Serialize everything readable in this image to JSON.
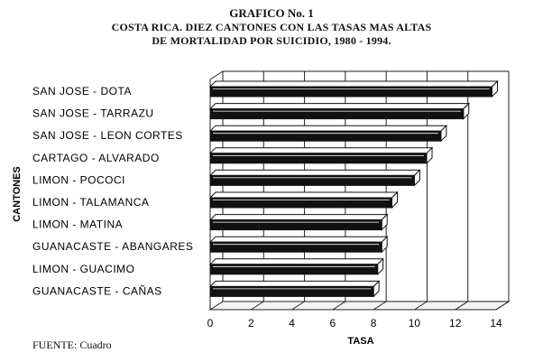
{
  "chart_data": {
    "type": "bar",
    "orientation": "horizontal",
    "title": "GRAFICO No. 1",
    "subtitle": [
      "COSTA RICA. DIEZ CANTONES CON LAS TASAS MAS ALTAS",
      "DE MORTALIDAD POR SUICIDIO, 1980 - 1994."
    ],
    "xlabel": "TASA",
    "ylabel": "CANTONES",
    "xlim": [
      0,
      14
    ],
    "xticks": [
      "0",
      "2",
      "4",
      "6",
      "8",
      "10",
      "12",
      "14"
    ],
    "grid": true,
    "categories": [
      "SAN JOSE - DOTA",
      "SAN JOSE - TARRAZU",
      "SAN JOSE - LEON CORTES",
      "CARTAGO - ALVARADO",
      "LIMON -  POCOCI",
      "LIMON - TALAMANCA",
      "LIMON - MATINA",
      "GUANACASTE - ABANGARES",
      "LIMON - GUACIMO",
      "GUANACASTE - CAÑAS"
    ],
    "values": [
      13.8,
      12.4,
      11.3,
      10.6,
      10.0,
      8.9,
      8.4,
      8.4,
      8.2,
      8.0
    ],
    "source": "FUENTE: Cuadro"
  }
}
